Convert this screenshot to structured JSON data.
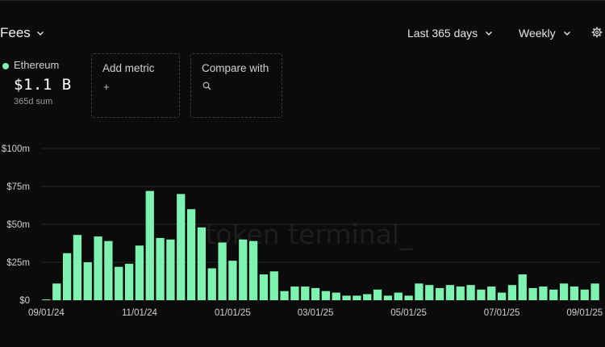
{
  "header": {
    "title": "Fees",
    "range_label": "Last 365 days",
    "granularity_label": "Weekly"
  },
  "metric": {
    "name": "Ethereum",
    "value": "$1.1 B",
    "sub": "365d sum",
    "color": "#7ef2b0"
  },
  "add_metric": {
    "label": "Add metric",
    "icon": "+"
  },
  "compare": {
    "label": "Compare with",
    "icon": "search-icon"
  },
  "watermark": "token terminal_",
  "colors": {
    "bar": "#7ef2b0",
    "grid": "#262626",
    "background": "#0b0b0b"
  },
  "chart_data": {
    "type": "bar",
    "unit": "USD millions",
    "ylim": [
      0,
      100
    ],
    "y_ticks": [
      {
        "value": 0,
        "label": "$0"
      },
      {
        "value": 25,
        "label": "$25m"
      },
      {
        "value": 50,
        "label": "$50m"
      },
      {
        "value": 75,
        "label": "$75m"
      },
      {
        "value": 100,
        "label": "$100m"
      }
    ],
    "x_ticks": [
      {
        "index": 0,
        "label": "09/01/24"
      },
      {
        "index": 9,
        "label": "11/01/24"
      },
      {
        "index": 18,
        "label": "01/01/25"
      },
      {
        "index": 26,
        "label": "03/01/25"
      },
      {
        "index": 35,
        "label": "05/01/25"
      },
      {
        "index": 44,
        "label": "07/01/25"
      },
      {
        "index": 52,
        "label": "09/01/25"
      }
    ],
    "grid": true,
    "legend": "none",
    "values": [
      0.5,
      11,
      31,
      43,
      25,
      42,
      39,
      22,
      24,
      36,
      72,
      41,
      40,
      70,
      60,
      48,
      21,
      38,
      26,
      40,
      39,
      17,
      19,
      6,
      9,
      9,
      8,
      6,
      5,
      3,
      3,
      4,
      7,
      3,
      5,
      3,
      11,
      10,
      8,
      10,
      9,
      10,
      7,
      9,
      5,
      10,
      17,
      8,
      9,
      7,
      11,
      9,
      7,
      11
    ]
  }
}
